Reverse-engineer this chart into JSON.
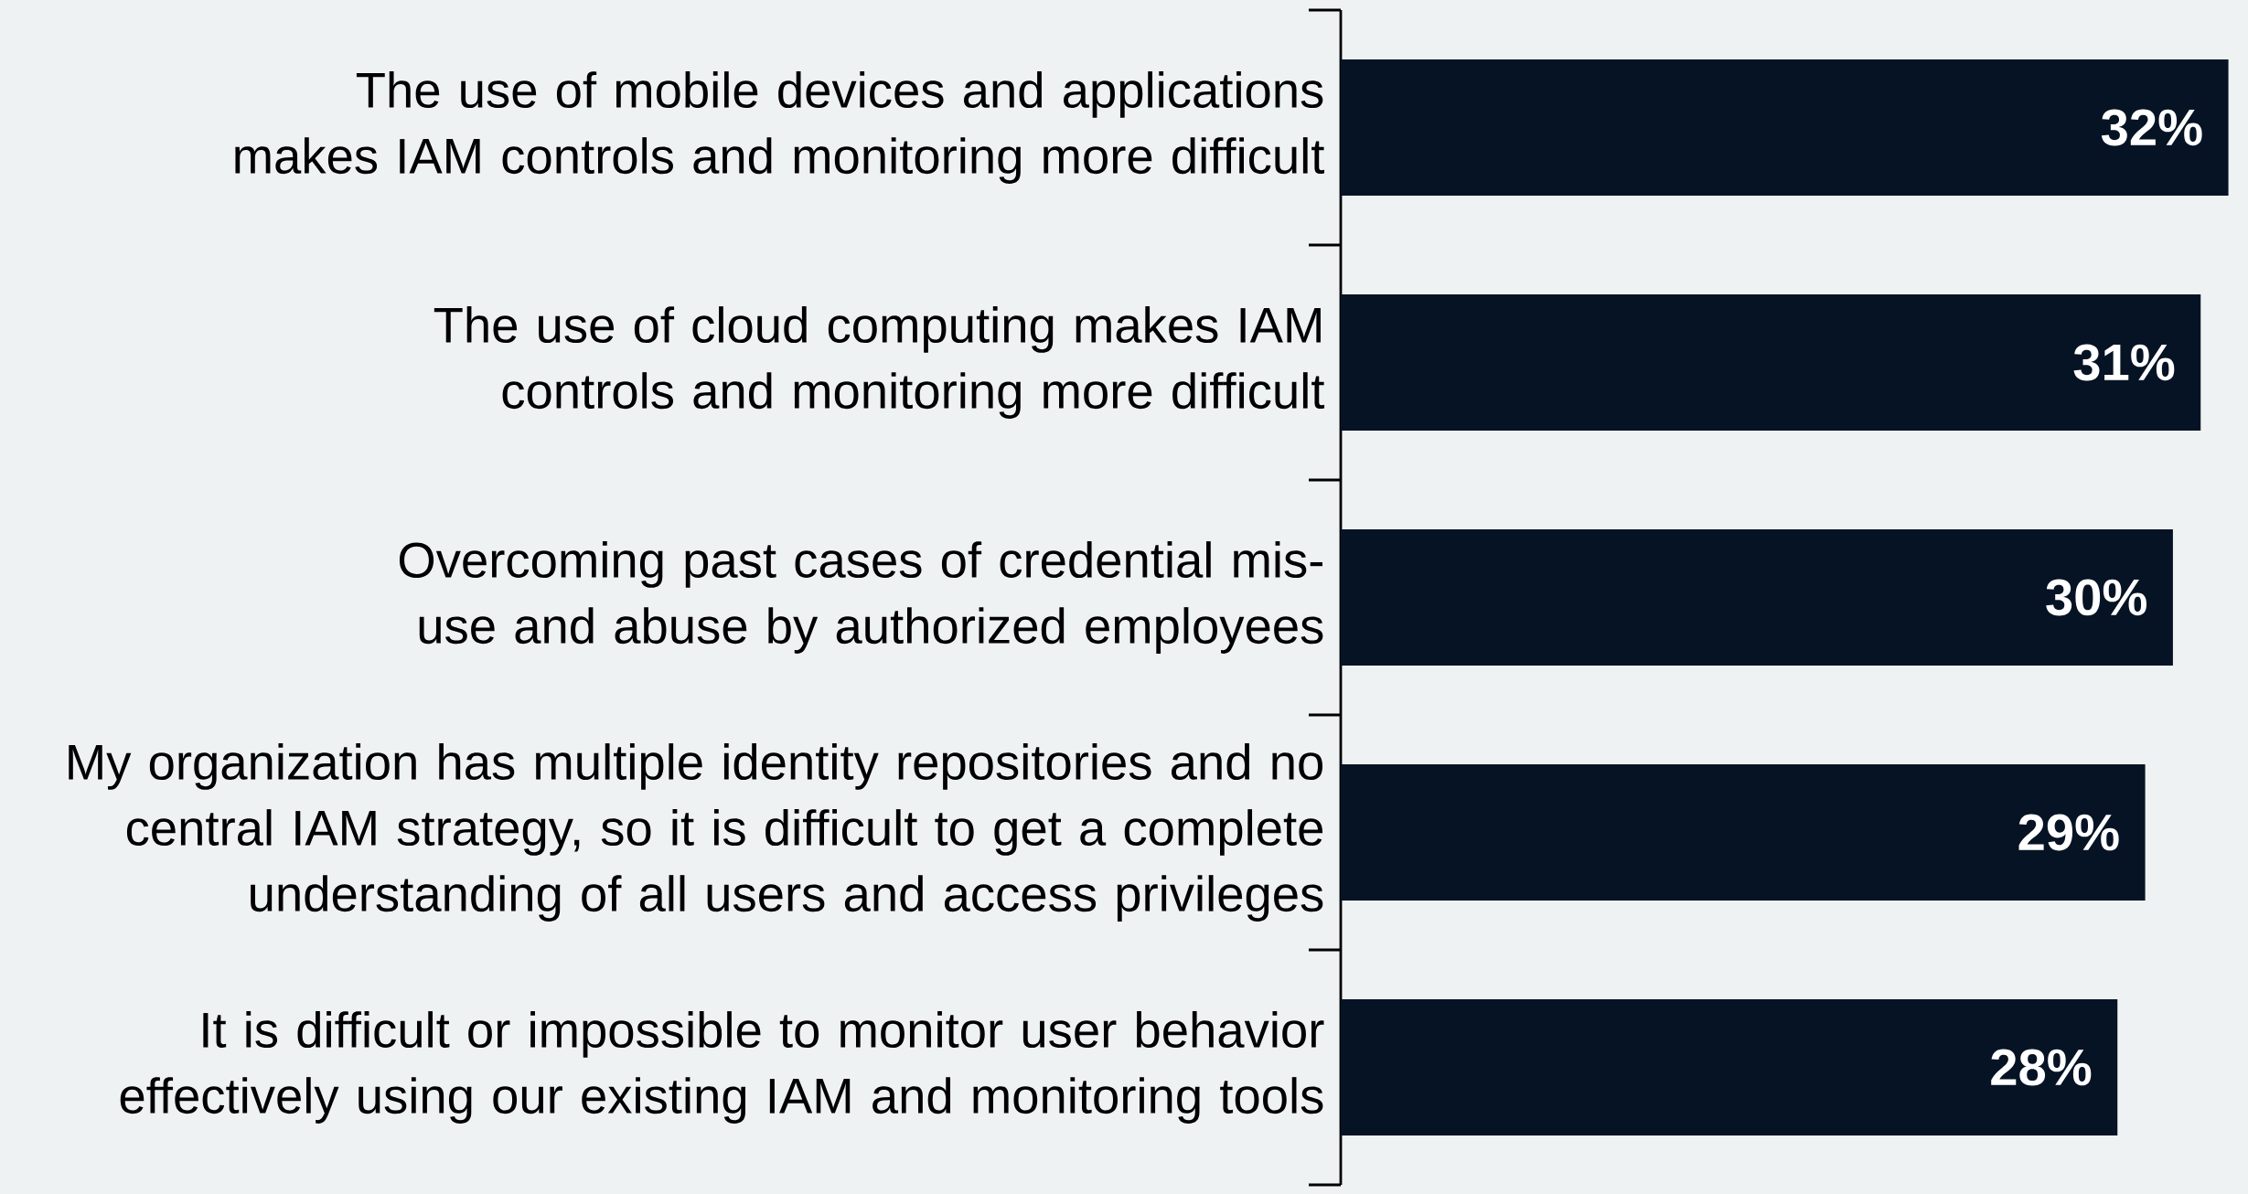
{
  "chart_data": {
    "type": "bar",
    "orientation": "horizontal",
    "categories": [
      "The use of mobile devices and applications makes IAM controls and monitoring more difficult",
      "The use of cloud computing makes IAM controls and monitoring more difficult",
      "Overcoming past cases of credential mis-use and abuse by authorized employees",
      "My organization has multiple identity repositories and no central IAM strategy, so it is difficult to get a complete understanding of all users and access privileges",
      "It is difficult or impossible to monitor user behavior effectively using our existing IAM and monitoring tools"
    ],
    "values": [
      32,
      31,
      30,
      29,
      28
    ],
    "value_labels": [
      "32%",
      "31%",
      "30%",
      "29%",
      "28%"
    ],
    "color": "#061325"
  }
}
